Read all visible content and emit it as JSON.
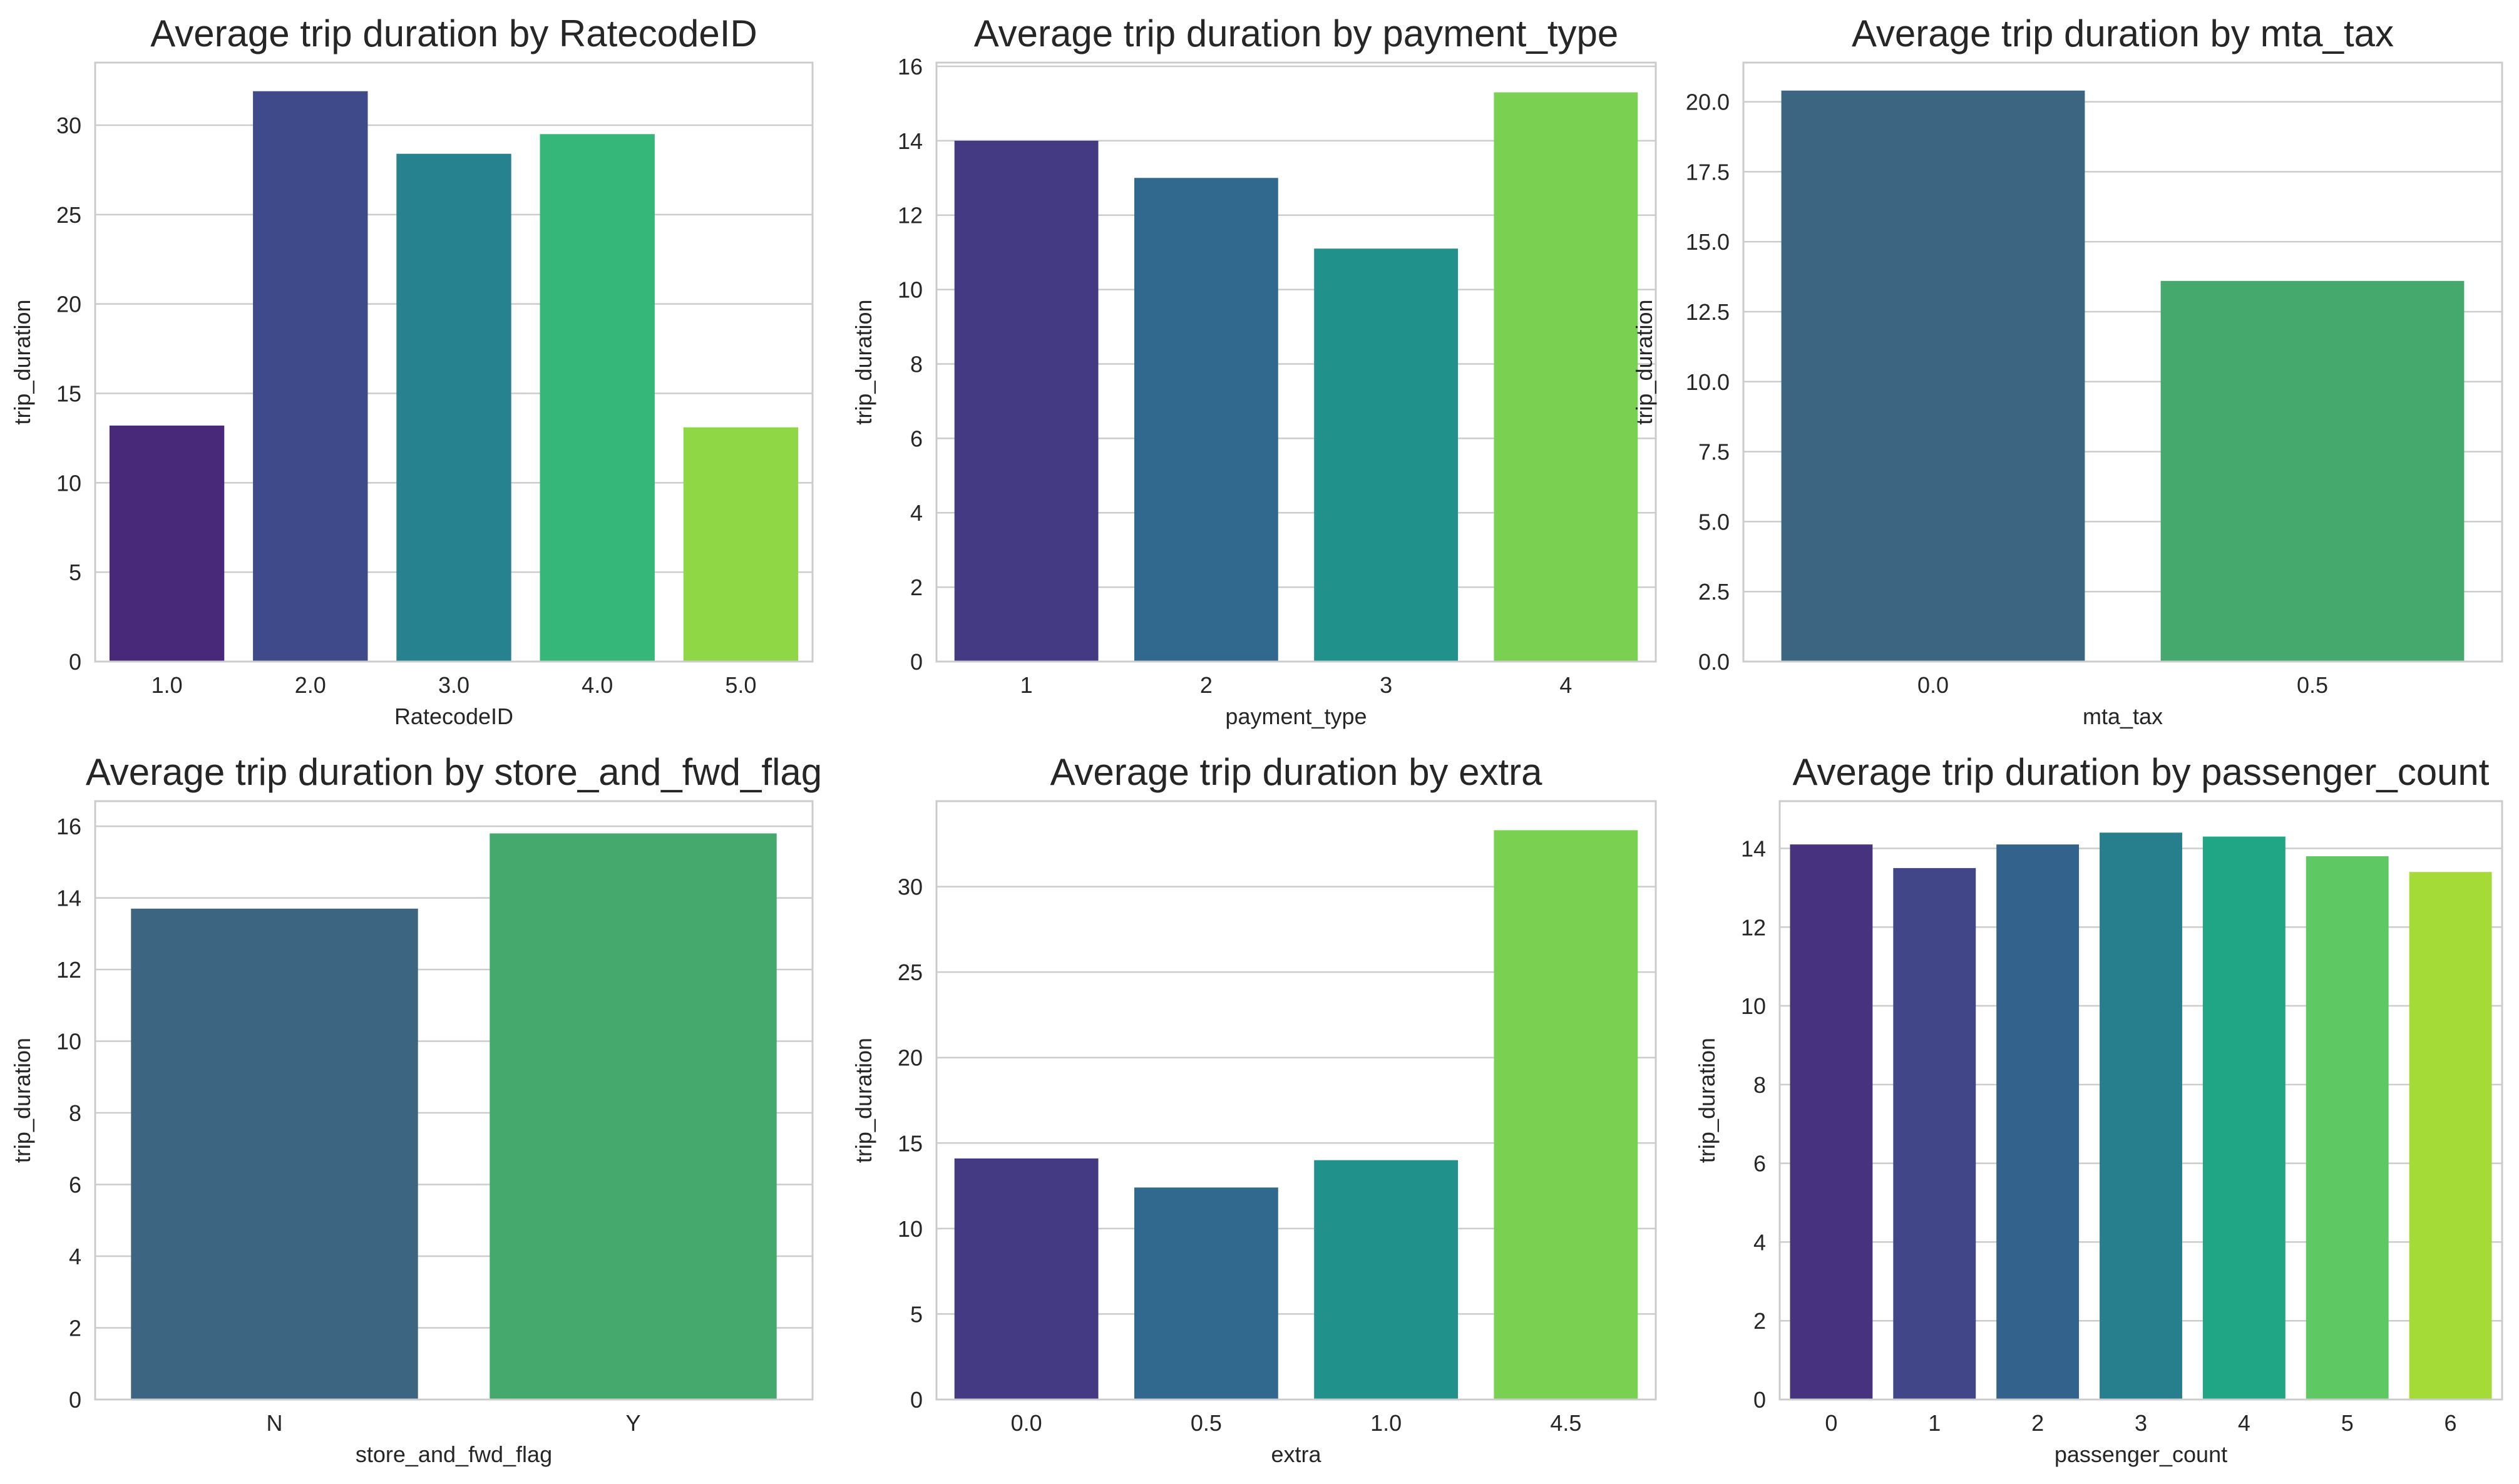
{
  "chart_data": [
    {
      "type": "bar",
      "title": "Average trip duration by RatecodeID",
      "xlabel": "RatecodeID",
      "ylabel": "trip_duration",
      "categories": [
        "1.0",
        "2.0",
        "3.0",
        "4.0",
        "5.0"
      ],
      "values": [
        13.2,
        31.9,
        28.4,
        29.5,
        13.1
      ],
      "colors": [
        "#482878",
        "#3e4a89",
        "#26828e",
        "#35b779",
        "#8fd744"
      ],
      "ylim": [
        0,
        33.5
      ],
      "yticks": [
        0,
        5,
        10,
        15,
        20,
        25,
        30
      ],
      "yticklabels": [
        "0",
        "5",
        "10",
        "15",
        "20",
        "25",
        "30"
      ],
      "grid": true
    },
    {
      "type": "bar",
      "title": "Average trip duration by payment_type",
      "xlabel": "payment_type",
      "ylabel": "trip_duration",
      "categories": [
        "1",
        "2",
        "3",
        "4"
      ],
      "values": [
        14.0,
        13.0,
        11.1,
        15.3
      ],
      "colors": [
        "#443983",
        "#31688e",
        "#21918c",
        "#7ad151"
      ],
      "ylim": [
        0,
        16.1
      ],
      "yticks": [
        0,
        2,
        4,
        6,
        8,
        10,
        12,
        14,
        16
      ],
      "yticklabels": [
        "0",
        "2",
        "4",
        "6",
        "8",
        "10",
        "12",
        "14",
        "16"
      ],
      "grid": true
    },
    {
      "type": "bar",
      "title": "Average trip duration by mta_tax",
      "xlabel": "mta_tax",
      "ylabel": "trip_duration",
      "categories": [
        "0.0",
        "0.5"
      ],
      "values": [
        20.4,
        13.6
      ],
      "colors": [
        "#3b6581",
        "#45a96e"
      ],
      "ylim": [
        0,
        21.4
      ],
      "yticks": [
        0,
        2.5,
        5.0,
        7.5,
        10.0,
        12.5,
        15.0,
        17.5,
        20.0
      ],
      "yticklabels": [
        "0.0",
        "2.5",
        "5.0",
        "7.5",
        "10.0",
        "12.5",
        "15.0",
        "17.5",
        "20.0"
      ],
      "grid": true
    },
    {
      "type": "bar",
      "title": "Average trip duration by store_and_fwd_flag",
      "xlabel": "store_and_fwd_flag",
      "ylabel": "trip_duration",
      "categories": [
        "N",
        "Y"
      ],
      "values": [
        13.7,
        15.8
      ],
      "colors": [
        "#3b6581",
        "#45a96e"
      ],
      "ylim": [
        0,
        16.7
      ],
      "yticks": [
        0,
        2,
        4,
        6,
        8,
        10,
        12,
        14,
        16
      ],
      "yticklabels": [
        "0",
        "2",
        "4",
        "6",
        "8",
        "10",
        "12",
        "14",
        "16"
      ],
      "grid": true
    },
    {
      "type": "bar",
      "title": "Average trip duration by extra",
      "xlabel": "extra",
      "ylabel": "trip_duration",
      "categories": [
        "0.0",
        "0.5",
        "1.0",
        "4.5"
      ],
      "values": [
        14.1,
        12.4,
        14.0,
        33.3
      ],
      "colors": [
        "#443983",
        "#31688e",
        "#21918c",
        "#7ad151"
      ],
      "ylim": [
        0,
        35.0
      ],
      "yticks": [
        0,
        5,
        10,
        15,
        20,
        25,
        30
      ],
      "yticklabels": [
        "0",
        "5",
        "10",
        "15",
        "20",
        "25",
        "30"
      ],
      "grid": true
    },
    {
      "type": "bar",
      "title": "Average trip duration by passenger_count",
      "xlabel": "passenger_count",
      "ylabel": "trip_duration",
      "categories": [
        "0",
        "1",
        "2",
        "3",
        "4",
        "5",
        "6"
      ],
      "values": [
        14.1,
        13.5,
        14.1,
        14.4,
        14.3,
        13.8,
        13.4
      ],
      "colors": [
        "#46327e",
        "#404688",
        "#33638d",
        "#277f8e",
        "#21a685",
        "#5ec962",
        "#a5db36"
      ],
      "ylim": [
        0,
        15.2
      ],
      "yticks": [
        0,
        2,
        4,
        6,
        8,
        10,
        12,
        14
      ],
      "yticklabels": [
        "0",
        "2",
        "4",
        "6",
        "8",
        "10",
        "12",
        "14"
      ],
      "grid": true
    }
  ]
}
